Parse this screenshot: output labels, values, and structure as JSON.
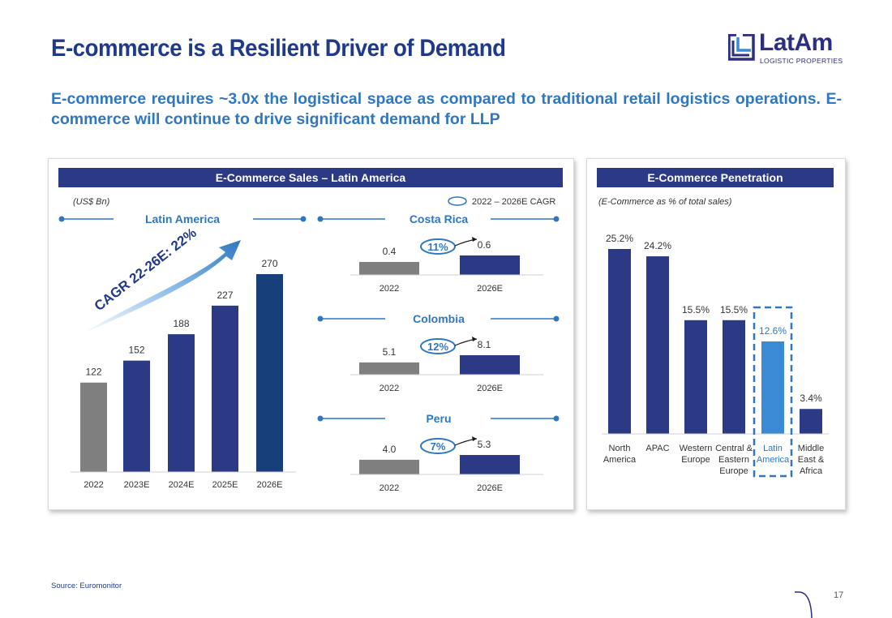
{
  "header": {
    "title": "E-commerce is a Resilient Driver of Demand",
    "subtitle": "E-commerce requires ~3.0x the logistical space as compared to traditional retail logistics operations. E-commerce will continue to drive significant demand for LLP"
  },
  "logo": {
    "word": "LatAm",
    "sub": "LOGISTIC PROPERTIES"
  },
  "footer": {
    "source": "Source: Euromonitor",
    "page": "17"
  },
  "colors": {
    "navy": "#2c3a85",
    "blue_dark": "#173f7a",
    "grey": "#7f7f7f",
    "accent": "#2f77c0",
    "latam_highlight": "#3b8ad6"
  },
  "left_panel": {
    "header": "E-Commerce Sales – Latin America",
    "unit_note": "(US$ Bn)",
    "legend_label": "2022 – 2026E CAGR",
    "cagr_arrow_label": "CAGR 22-26E: 22%"
  },
  "right_panel": {
    "header": "E-Commerce Penetration",
    "unit_note": "(E-Commerce as % of total sales)"
  },
  "chart_data": [
    {
      "type": "bar",
      "title": "Latin America",
      "categories": [
        "2022",
        "2023E",
        "2024E",
        "2025E",
        "2026E"
      ],
      "values": [
        122,
        152,
        188,
        227,
        270
      ],
      "labels": [
        "122",
        "152",
        "188",
        "227",
        "270"
      ],
      "ylabel": "US$ Bn",
      "ylim": [
        0,
        290
      ]
    },
    {
      "type": "bar",
      "title": "Costa Rica",
      "categories": [
        "2022",
        "2026E"
      ],
      "values": [
        0.4,
        0.6
      ],
      "labels": [
        "0.4",
        "0.6"
      ],
      "cagr": "11%"
    },
    {
      "type": "bar",
      "title": "Colombia",
      "categories": [
        "2022",
        "2026E"
      ],
      "values": [
        5.1,
        8.1
      ],
      "labels": [
        "5.1",
        "8.1"
      ],
      "cagr": "12%"
    },
    {
      "type": "bar",
      "title": "Peru",
      "categories": [
        "2022",
        "2026E"
      ],
      "values": [
        4.0,
        5.3
      ],
      "labels": [
        "4.0",
        "5.3"
      ],
      "cagr": "7%"
    },
    {
      "type": "bar",
      "title": "E-Commerce Penetration",
      "categories": [
        [
          "North",
          "America"
        ],
        [
          "APAC"
        ],
        [
          "Western",
          "Europe"
        ],
        [
          "Central &",
          "Eastern",
          "Europe"
        ],
        [
          "Latin",
          "America"
        ],
        [
          "Middle",
          "East &",
          "Africa"
        ]
      ],
      "values": [
        25.2,
        24.2,
        15.5,
        15.5,
        12.6,
        3.4
      ],
      "labels": [
        "25.2%",
        "24.2%",
        "15.5%",
        "15.5%",
        "12.6%",
        "3.4%"
      ],
      "highlight_index": 4,
      "ylim": [
        0,
        27
      ]
    }
  ]
}
